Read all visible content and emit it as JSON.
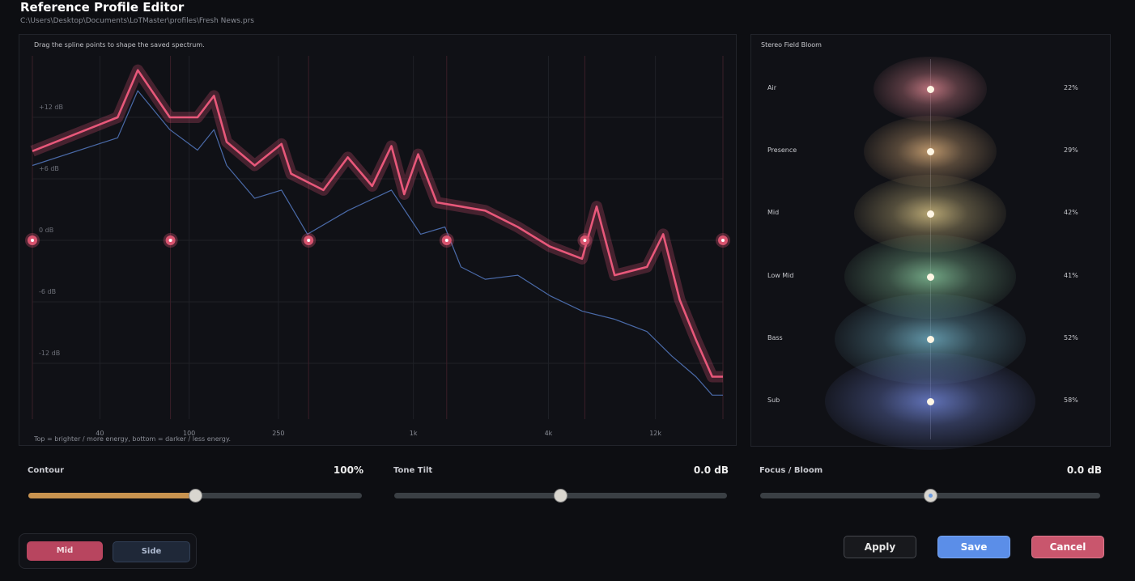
{
  "header": {
    "title": "Reference Profile Editor",
    "path": "C:\\Users\\Desktop\\Documents\\LoTMaster\\profiles\\Fresh  News.prs"
  },
  "spectrum": {
    "hint": "Drag the spline points to shape the saved spectrum.",
    "caption": "Top = brighter / more energy, bottom = darker / less energy.",
    "xlim": [
      20,
      24000
    ],
    "ylim": [
      -18,
      18
    ],
    "xticks": [
      {
        "value": 40,
        "label": "40"
      },
      {
        "value": 100,
        "label": "100"
      },
      {
        "value": 250,
        "label": "250"
      },
      {
        "value": 1000,
        "label": "1k"
      },
      {
        "value": 4000,
        "label": "4k"
      },
      {
        "value": 12000,
        "label": "12k"
      }
    ],
    "yticks": [
      {
        "value": 12,
        "label": "+12 dB"
      },
      {
        "value": 6,
        "label": "+6 dB"
      },
      {
        "value": 0,
        "label": "0 dB"
      },
      {
        "value": -6,
        "label": "-6 dB"
      },
      {
        "value": -12,
        "label": "-12 dB"
      }
    ],
    "mid": {
      "color": "#e8587a",
      "freq": [
        20,
        48,
        59,
        82,
        109,
        129,
        147,
        196,
        258,
        285,
        397,
        510,
        655,
        798,
        910,
        1050,
        1270,
        1630,
        2090,
        2920,
        4060,
        5650,
        6560,
        7890,
        11000,
        13000,
        15400,
        18200,
        21500,
        24000
      ],
      "db": [
        8.7,
        12.0,
        16.6,
        12.0,
        12.0,
        14.1,
        9.6,
        7.3,
        9.4,
        6.5,
        4.9,
        8.1,
        5.3,
        9.2,
        4.5,
        8.4,
        3.7,
        3.3,
        2.9,
        1.3,
        -0.6,
        -1.8,
        3.3,
        -3.4,
        -2.6,
        0.6,
        -5.8,
        -9.7,
        -13.3,
        -13.3
      ]
    },
    "side": {
      "color": "#4a6aa8",
      "freq": [
        20,
        48,
        59,
        82,
        109,
        129,
        147,
        196,
        258,
        337,
        510,
        798,
        1077,
        1382,
        1630,
        2090,
        2920,
        4060,
        5650,
        7890,
        11000,
        14200,
        18200,
        21500,
        24000
      ],
      "db": [
        7.3,
        10.0,
        14.6,
        10.8,
        8.8,
        10.8,
        7.3,
        4.1,
        4.9,
        0.6,
        2.9,
        4.9,
        0.6,
        1.3,
        -2.6,
        -3.8,
        -3.4,
        -5.4,
        -6.9,
        -7.7,
        -8.9,
        -11.3,
        -13.3,
        -15.1,
        -15.1
      ]
    }
  },
  "bloom": {
    "title": "Stereo Field Bloom",
    "bands": [
      {
        "label": "Air",
        "value": "22%"
      },
      {
        "label": "Presence",
        "value": "29%"
      },
      {
        "label": "Mid",
        "value": "42%"
      },
      {
        "label": "Low Mid",
        "value": "41%"
      },
      {
        "label": "Bass",
        "value": "52%"
      },
      {
        "label": "Sub",
        "value": "58%"
      }
    ]
  },
  "sliders": [
    {
      "label": "Contour",
      "value": "100%"
    },
    {
      "label": "Tone Tilt",
      "value": "0.0 dB"
    },
    {
      "label": "Focus / Bloom",
      "value": "0.0 dB"
    }
  ],
  "mode": [
    "Mid",
    "Side"
  ],
  "buttons": [
    "Apply",
    "Save",
    "Cancel"
  ]
}
